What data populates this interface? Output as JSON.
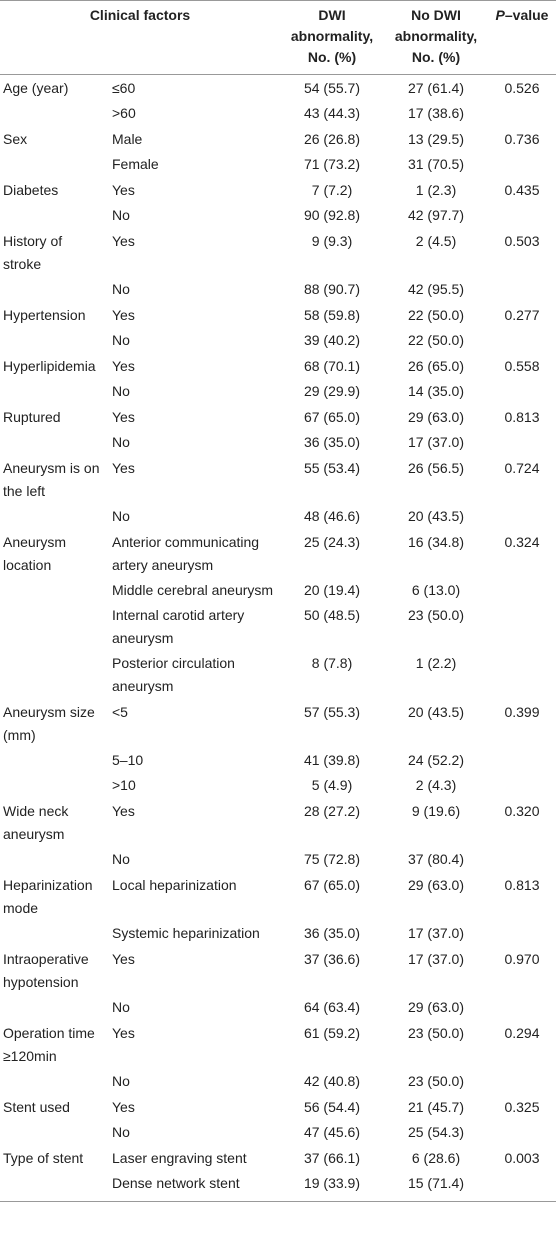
{
  "header": {
    "factors": "Clinical factors",
    "dwi": "DWI abnormality, No. (%)",
    "no_dwi": "No DWI abnormality, No. (%)",
    "p_italic": "P",
    "p_rest": "–value"
  },
  "rows": [
    {
      "factor": "Age (year)",
      "level": "≤60",
      "dwi": "54 (55.7)",
      "no_dwi": "27 (61.4)",
      "p": "0.526"
    },
    {
      "factor": "",
      "level": ">60",
      "dwi": "43 (44.3)",
      "no_dwi": "17 (38.6)",
      "p": ""
    },
    {
      "factor": "Sex",
      "level": "Male",
      "dwi": "26 (26.8)",
      "no_dwi": "13 (29.5)",
      "p": "0.736"
    },
    {
      "factor": "",
      "level": "Female",
      "dwi": "71 (73.2)",
      "no_dwi": "31 (70.5)",
      "p": ""
    },
    {
      "factor": "Diabetes",
      "level": "Yes",
      "dwi": "7 (7.2)",
      "no_dwi": "1 (2.3)",
      "p": "0.435"
    },
    {
      "factor": "",
      "level": "No",
      "dwi": "90 (92.8)",
      "no_dwi": "42 (97.7)",
      "p": ""
    },
    {
      "factor": "History of stroke",
      "level": "Yes",
      "dwi": "9 (9.3)",
      "no_dwi": "2 (4.5)",
      "p": "0.503"
    },
    {
      "factor": "",
      "level": "No",
      "dwi": "88 (90.7)",
      "no_dwi": "42 (95.5)",
      "p": ""
    },
    {
      "factor": "Hypertension",
      "level": "Yes",
      "dwi": "58 (59.8)",
      "no_dwi": "22 (50.0)",
      "p": "0.277"
    },
    {
      "factor": "",
      "level": "No",
      "dwi": "39 (40.2)",
      "no_dwi": "22 (50.0)",
      "p": ""
    },
    {
      "factor": "Hyperlipidemia",
      "level": "Yes",
      "dwi": "68 (70.1)",
      "no_dwi": "26 (65.0)",
      "p": "0.558"
    },
    {
      "factor": "",
      "level": "No",
      "dwi": "29 (29.9)",
      "no_dwi": "14 (35.0)",
      "p": ""
    },
    {
      "factor": "Ruptured",
      "level": "Yes",
      "dwi": "67 (65.0)",
      "no_dwi": "29 (63.0)",
      "p": "0.813"
    },
    {
      "factor": "",
      "level": "No",
      "dwi": "36 (35.0)",
      "no_dwi": "17 (37.0)",
      "p": ""
    },
    {
      "factor": "Aneurysm is on the left",
      "level": "Yes",
      "dwi": "55 (53.4)",
      "no_dwi": "26 (56.5)",
      "p": "0.724"
    },
    {
      "factor": "",
      "level": "No",
      "dwi": "48 (46.6)",
      "no_dwi": "20 (43.5)",
      "p": ""
    },
    {
      "factor": "Aneurysm location",
      "level": "Anterior communicating artery aneurysm",
      "dwi": "25 (24.3)",
      "no_dwi": "16 (34.8)",
      "p": "0.324"
    },
    {
      "factor": "",
      "level": "Middle cerebral aneurysm",
      "dwi": "20 (19.4)",
      "no_dwi": "6 (13.0)",
      "p": ""
    },
    {
      "factor": "",
      "level": "Internal carotid artery aneurysm",
      "dwi": "50 (48.5)",
      "no_dwi": "23 (50.0)",
      "p": ""
    },
    {
      "factor": "",
      "level": "Posterior circulation aneurysm",
      "dwi": "8 (7.8)",
      "no_dwi": "1 (2.2)",
      "p": ""
    },
    {
      "factor": "Aneurysm size (mm)",
      "level": "<5",
      "dwi": "57 (55.3)",
      "no_dwi": "20 (43.5)",
      "p": "0.399"
    },
    {
      "factor": "",
      "level": "5–10",
      "dwi": "41 (39.8)",
      "no_dwi": "24 (52.2)",
      "p": ""
    },
    {
      "factor": "",
      "level": ">10",
      "dwi": "5 (4.9)",
      "no_dwi": "2 (4.3)",
      "p": ""
    },
    {
      "factor": "Wide neck aneurysm",
      "level": "Yes",
      "dwi": "28 (27.2)",
      "no_dwi": "9 (19.6)",
      "p": "0.320"
    },
    {
      "factor": "",
      "level": "No",
      "dwi": "75 (72.8)",
      "no_dwi": "37 (80.4)",
      "p": ""
    },
    {
      "factor": "Heparinization mode",
      "level": "Local heparinization",
      "dwi": "67 (65.0)",
      "no_dwi": "29 (63.0)",
      "p": "0.813"
    },
    {
      "factor": "",
      "level": "Systemic heparinization",
      "dwi": "36 (35.0)",
      "no_dwi": "17 (37.0)",
      "p": ""
    },
    {
      "factor": "Intraoperative hypotension",
      "level": "Yes",
      "dwi": "37 (36.6)",
      "no_dwi": "17 (37.0)",
      "p": "0.970"
    },
    {
      "factor": "",
      "level": "No",
      "dwi": "64 (63.4)",
      "no_dwi": "29 (63.0)",
      "p": ""
    },
    {
      "factor": "Operation time ≥120min",
      "level": "Yes",
      "dwi": "61 (59.2)",
      "no_dwi": "23 (50.0)",
      "p": "0.294"
    },
    {
      "factor": "",
      "level": "No",
      "dwi": "42 (40.8)",
      "no_dwi": "23 (50.0)",
      "p": ""
    },
    {
      "factor": "Stent used",
      "level": "Yes",
      "dwi": "56 (54.4)",
      "no_dwi": "21 (45.7)",
      "p": "0.325"
    },
    {
      "factor": "",
      "level": "No",
      "dwi": "47 (45.6)",
      "no_dwi": "25 (54.3)",
      "p": ""
    },
    {
      "factor": "Type of stent",
      "level": "Laser engraving stent",
      "dwi": "37 (66.1)",
      "no_dwi": "6 (28.6)",
      "p": "0.003"
    },
    {
      "factor": "",
      "level": "Dense network stent",
      "dwi": "19 (33.9)",
      "no_dwi": "15 (71.4)",
      "p": ""
    }
  ]
}
